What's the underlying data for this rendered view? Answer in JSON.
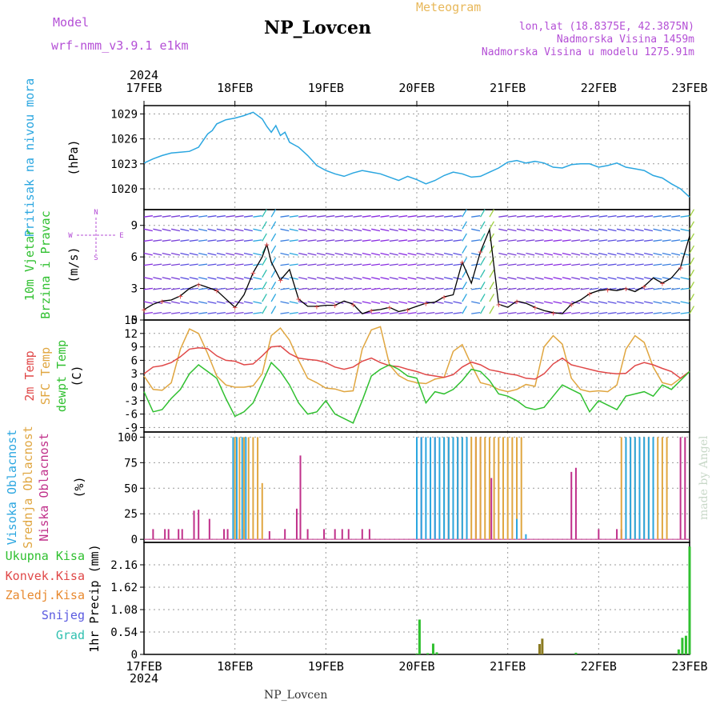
{
  "header": {
    "model_label": "Model",
    "model_name": "wrf-nmm_v3.9.1 e1km",
    "station": "NP_Lovcen",
    "meteogram_label": "Meteogram",
    "coords": "lon,lat (18.8375E, 42.3875N)",
    "elevation": "Nadmorska Visina 1459m",
    "model_elevation": "Nadmorska Visina u modelu 1275.91m",
    "year": "2024",
    "footer_station": "NP_Lovcen",
    "credit": "made by Angel"
  },
  "colors": {
    "pressure": "#2aa6e0",
    "temp": "#e04848",
    "sfc_temp": "#e0a640",
    "dewpoint": "#30c030",
    "high_cloud": "#2aa6e0",
    "mid_cloud": "#e0a640",
    "low_cloud": "#c0308a",
    "precip_total": "#30c030",
    "precip_conv": "#e04848",
    "precip_strat": "#e88a30",
    "snow": "#5a5ae0",
    "hail": "#30c0b0",
    "wind_label": "#b44fd6"
  },
  "chart_data": [
    {
      "id": "pressure",
      "type": "line",
      "ylabel_left": "Pritisak na nivou mora",
      "ylabel_unit": "(hPa)",
      "ylim": [
        1017.5,
        1030
      ],
      "yticks": [
        1020,
        1023,
        1026,
        1029
      ],
      "x_ticks": [
        "17FEB",
        "18FEB",
        "19FEB",
        "20FEB",
        "21FEB",
        "22FEB",
        "23FEB"
      ],
      "x_days": [
        0,
        6
      ],
      "grid": true,
      "series": [
        {
          "key": "pressure",
          "x": [
            0,
            0.1,
            0.2,
            0.3,
            0.4,
            0.5,
            0.6,
            0.7,
            0.75,
            0.8,
            0.9,
            1.0,
            1.1,
            1.2,
            1.3,
            1.35,
            1.4,
            1.45,
            1.5,
            1.55,
            1.6,
            1.65,
            1.7,
            1.8,
            1.9,
            2.0,
            2.1,
            2.2,
            2.3,
            2.4,
            2.5,
            2.6,
            2.7,
            2.8,
            2.9,
            3.0,
            3.1,
            3.2,
            3.3,
            3.4,
            3.5,
            3.6,
            3.7,
            3.8,
            3.9,
            4.0,
            4.1,
            4.2,
            4.3,
            4.4,
            4.5,
            4.6,
            4.7,
            4.8,
            4.9,
            5.0,
            5.1,
            5.2,
            5.3,
            5.4,
            5.5,
            5.6,
            5.7,
            5.8,
            5.9,
            6.0
          ],
          "y": [
            1023.1,
            1023.6,
            1024.0,
            1024.3,
            1024.4,
            1024.5,
            1025.0,
            1026.6,
            1027.0,
            1027.8,
            1028.3,
            1028.5,
            1028.8,
            1029.2,
            1028.4,
            1027.5,
            1026.8,
            1027.6,
            1026.4,
            1026.8,
            1025.6,
            1025.3,
            1025.0,
            1024.0,
            1022.8,
            1022.2,
            1021.8,
            1021.5,
            1021.9,
            1022.2,
            1022.0,
            1021.8,
            1021.4,
            1021.0,
            1021.5,
            1021.1,
            1020.6,
            1021.0,
            1021.6,
            1022.0,
            1021.8,
            1021.4,
            1021.5,
            1022.0,
            1022.5,
            1023.2,
            1023.4,
            1023.1,
            1023.3,
            1023.1,
            1022.6,
            1022.5,
            1022.9,
            1023.0,
            1023.0,
            1022.6,
            1022.8,
            1023.1,
            1022.6,
            1022.4,
            1022.2,
            1021.6,
            1021.3,
            1020.6,
            1020.0,
            1019.0
          ]
        }
      ]
    },
    {
      "id": "wind",
      "type": "line",
      "ylabel_left": "10m Vjetar",
      "ylabel_left2": "Brzina i Pravac",
      "ylabel_unit": "(m/s)",
      "compass": [
        "N",
        "E",
        "S",
        "W"
      ],
      "ylim": [
        0,
        10.5
      ],
      "yticks": [
        0,
        3,
        6,
        9
      ],
      "grid": true,
      "series": [
        {
          "key": "speed",
          "x": [
            0,
            0.1,
            0.2,
            0.3,
            0.4,
            0.5,
            0.6,
            0.7,
            0.8,
            0.9,
            1.0,
            1.1,
            1.2,
            1.3,
            1.35,
            1.4,
            1.5,
            1.6,
            1.7,
            1.8,
            1.9,
            2.0,
            2.1,
            2.2,
            2.3,
            2.4,
            2.5,
            2.6,
            2.7,
            2.8,
            2.9,
            3.0,
            3.1,
            3.2,
            3.3,
            3.4,
            3.5,
            3.6,
            3.7,
            3.8,
            3.9,
            4.0,
            4.1,
            4.2,
            4.3,
            4.4,
            4.5,
            4.6,
            4.7,
            4.8,
            4.9,
            5.0,
            5.1,
            5.2,
            5.3,
            5.4,
            5.5,
            5.6,
            5.7,
            5.8,
            5.9,
            6.0
          ],
          "y": [
            1.0,
            1.5,
            1.8,
            1.9,
            2.3,
            3.0,
            3.4,
            3.1,
            2.8,
            2.0,
            1.2,
            2.4,
            4.5,
            6.0,
            7.2,
            5.5,
            3.8,
            4.8,
            2.0,
            1.3,
            1.3,
            1.4,
            1.4,
            1.8,
            1.5,
            0.6,
            0.9,
            1.0,
            1.2,
            0.8,
            1.0,
            1.3,
            1.6,
            1.7,
            2.2,
            2.4,
            5.5,
            3.5,
            6.5,
            8.6,
            1.5,
            1.2,
            1.8,
            1.6,
            1.2,
            0.9,
            0.7,
            0.6,
            1.5,
            1.9,
            2.5,
            2.8,
            2.9,
            2.8,
            3.0,
            2.7,
            3.2,
            4.0,
            3.5,
            4.0,
            5.0,
            8.0
          ]
        }
      ]
    },
    {
      "id": "temperature",
      "type": "line",
      "ylabel_left": "2m Temp",
      "ylabel_left2": "SFC Temp",
      "ylabel_left3": "dewpt Temp",
      "ylabel_unit": "(C)",
      "ylim": [
        -10,
        15
      ],
      "yticks": [
        -9,
        -6,
        -3,
        0,
        3,
        6,
        9,
        12,
        15
      ],
      "grid": true,
      "series": [
        {
          "key": "t2m",
          "x": [
            0,
            0.1,
            0.2,
            0.3,
            0.4,
            0.5,
            0.6,
            0.7,
            0.8,
            0.9,
            1.0,
            1.1,
            1.2,
            1.3,
            1.4,
            1.5,
            1.6,
            1.7,
            1.8,
            1.9,
            2.0,
            2.1,
            2.2,
            2.3,
            2.4,
            2.5,
            2.6,
            2.7,
            2.8,
            2.9,
            3.0,
            3.1,
            3.2,
            3.3,
            3.4,
            3.5,
            3.6,
            3.7,
            3.8,
            3.9,
            4.0,
            4.1,
            4.2,
            4.3,
            4.4,
            4.5,
            4.6,
            4.7,
            4.8,
            4.9,
            5.0,
            5.1,
            5.2,
            5.3,
            5.4,
            5.5,
            5.6,
            5.7,
            5.8,
            5.9,
            6.0
          ],
          "y": [
            3.0,
            4.5,
            4.8,
            5.5,
            6.8,
            8.5,
            8.8,
            8.6,
            7.0,
            6.0,
            5.8,
            5.0,
            5.2,
            7.0,
            9.0,
            9.2,
            7.5,
            6.5,
            6.2,
            6.0,
            5.5,
            4.5,
            4.0,
            4.5,
            5.8,
            6.5,
            5.5,
            4.8,
            4.6,
            4.0,
            3.5,
            2.8,
            2.5,
            2.2,
            2.8,
            4.5,
            5.6,
            5.0,
            3.9,
            3.5,
            3.0,
            2.7,
            2.0,
            1.8,
            3.0,
            5.2,
            6.5,
            5.0,
            4.5,
            4.0,
            3.5,
            3.2,
            3.0,
            3.1,
            4.8,
            5.5,
            5.0,
            4.2,
            3.5,
            2.0,
            3.5
          ]
        },
        {
          "key": "tsfc",
          "x": [
            0,
            0.1,
            0.2,
            0.3,
            0.4,
            0.5,
            0.6,
            0.7,
            0.8,
            0.9,
            1.0,
            1.1,
            1.2,
            1.3,
            1.4,
            1.5,
            1.6,
            1.7,
            1.8,
            1.9,
            2.0,
            2.1,
            2.2,
            2.3,
            2.4,
            2.5,
            2.6,
            2.7,
            2.8,
            2.9,
            3.0,
            3.1,
            3.2,
            3.3,
            3.4,
            3.5,
            3.6,
            3.7,
            3.8,
            3.9,
            4.0,
            4.1,
            4.2,
            4.3,
            4.4,
            4.5,
            4.6,
            4.7,
            4.8,
            4.9,
            5.0,
            5.1,
            5.2,
            5.3,
            5.4,
            5.5,
            5.6,
            5.7,
            5.8,
            5.9,
            6.0
          ],
          "y": [
            2.5,
            -0.5,
            -0.7,
            1.0,
            8.5,
            13.0,
            12.0,
            7.5,
            2.5,
            0.5,
            0.0,
            0.0,
            0.3,
            3.0,
            11.5,
            13.2,
            10.5,
            6.0,
            2.0,
            1.0,
            -0.2,
            -0.4,
            -1.0,
            -0.8,
            8.5,
            12.8,
            13.5,
            5.0,
            2.6,
            1.5,
            1.0,
            0.8,
            1.8,
            2.2,
            8.0,
            9.5,
            5.0,
            1.0,
            0.5,
            -0.5,
            -1.0,
            -0.5,
            0.6,
            0.2,
            9.0,
            11.5,
            9.6,
            2.0,
            -0.5,
            -1.0,
            -0.8,
            -1.0,
            0.5,
            8.5,
            11.5,
            10.0,
            4.5,
            1.0,
            0.5,
            2.0,
            3.5
          ]
        },
        {
          "key": "dewpt",
          "x": [
            0,
            0.1,
            0.2,
            0.3,
            0.4,
            0.5,
            0.6,
            0.7,
            0.8,
            0.9,
            1.0,
            1.1,
            1.2,
            1.3,
            1.4,
            1.5,
            1.6,
            1.7,
            1.8,
            1.9,
            2.0,
            2.1,
            2.2,
            2.3,
            2.4,
            2.5,
            2.6,
            2.7,
            2.8,
            2.9,
            3.0,
            3.1,
            3.2,
            3.3,
            3.4,
            3.5,
            3.6,
            3.7,
            3.8,
            3.9,
            4.0,
            4.1,
            4.2,
            4.3,
            4.4,
            4.5,
            4.6,
            4.7,
            4.8,
            4.9,
            5.0,
            5.1,
            5.2,
            5.3,
            5.4,
            5.5,
            5.6,
            5.7,
            5.8,
            5.9,
            6.0
          ],
          "y": [
            -1.0,
            -5.5,
            -5.0,
            -2.5,
            -0.5,
            3.0,
            5.0,
            3.5,
            2.0,
            -2.5,
            -6.5,
            -5.5,
            -3.5,
            1.0,
            5.5,
            3.5,
            0.5,
            -3.5,
            -6.0,
            -5.5,
            -3.0,
            -6.0,
            -7.0,
            -8.0,
            -3.0,
            2.5,
            4.0,
            5.0,
            4.0,
            2.5,
            2.0,
            -3.5,
            -1.0,
            -1.5,
            -0.5,
            1.5,
            4.0,
            3.5,
            1.5,
            -1.5,
            -2.0,
            -3.0,
            -4.5,
            -5.0,
            -4.5,
            -2.0,
            0.5,
            -0.5,
            -1.5,
            -5.5,
            -3.0,
            -4.0,
            -5.0,
            -2.0,
            -1.5,
            -1.0,
            -2.0,
            0.5,
            -0.5,
            1.5,
            3.5
          ]
        }
      ]
    },
    {
      "id": "clouds",
      "type": "bar",
      "ylabel_left": "Visoka Oblacnost",
      "ylabel_left2": "Srednja Oblacnost",
      "ylabel_left3": "Niska Oblacnost",
      "ylabel_unit": "(%)",
      "ylim": [
        -3,
        105
      ],
      "yticks": [
        0,
        25,
        50,
        75,
        100
      ],
      "grid": true,
      "series": [
        {
          "key": "low_cloud",
          "x": [
            0.1,
            0.23,
            0.27,
            0.38,
            0.42,
            0.55,
            0.6,
            0.72,
            0.88,
            0.92,
            1.05,
            1.1,
            1.38,
            1.55,
            1.68,
            1.72,
            1.8,
            1.98,
            2.1,
            2.18,
            2.25,
            2.4,
            2.48,
            3.0,
            3.05,
            3.2,
            3.35,
            3.45,
            3.55,
            3.65,
            3.7,
            3.82,
            4.7,
            4.75,
            5.0,
            5.2,
            5.25,
            5.9,
            5.95
          ],
          "y": [
            10,
            10,
            10,
            10,
            10,
            28,
            29,
            20,
            10,
            10,
            10,
            10,
            8,
            10,
            30,
            82,
            10,
            10,
            10,
            10,
            10,
            10,
            10,
            100,
            100,
            100,
            100,
            100,
            100,
            100,
            100,
            60,
            66,
            70,
            10,
            10,
            10,
            100,
            100
          ]
        },
        {
          "key": "mid_cloud",
          "x": [
            1.0,
            1.05,
            1.1,
            1.15,
            1.2,
            1.25,
            1.3,
            3.3,
            3.35,
            3.4,
            3.45,
            3.5,
            3.55,
            3.6,
            3.65,
            3.7,
            3.75,
            3.8,
            3.85,
            3.9,
            3.95,
            4.0,
            4.05,
            4.1,
            4.15,
            5.25,
            5.3,
            5.35,
            5.4,
            5.45,
            5.5,
            5.55,
            5.6,
            5.65,
            5.7,
            5.75
          ],
          "y": [
            100,
            100,
            100,
            100,
            100,
            100,
            55,
            100,
            100,
            100,
            100,
            100,
            100,
            100,
            100,
            100,
            100,
            100,
            100,
            100,
            100,
            100,
            100,
            100,
            100,
            100,
            100,
            100,
            100,
            100,
            100,
            100,
            100,
            100,
            100,
            100
          ]
        },
        {
          "key": "high_cloud",
          "x": [
            0.98,
            1.02,
            1.08,
            1.12,
            3.0,
            3.05,
            3.1,
            3.15,
            3.2,
            3.25,
            3.3,
            3.35,
            3.4,
            3.45,
            3.5,
            3.55,
            4.1,
            4.2,
            5.3,
            5.35,
            5.4,
            5.45,
            5.5,
            5.55,
            5.6
          ],
          "y": [
            100,
            100,
            100,
            100,
            100,
            100,
            100,
            100,
            100,
            100,
            100,
            100,
            100,
            100,
            100,
            100,
            20,
            5,
            100,
            100,
            100,
            100,
            100,
            100,
            100
          ]
        }
      ]
    },
    {
      "id": "precip",
      "type": "bar",
      "ylabel_left": "Ukupna Kisa",
      "ylabel_left2": "Konvek.Kisa",
      "ylabel_left3": "Zaledj.Kisa",
      "ylabel_left4": "Snijeg",
      "ylabel_left5": "Grad",
      "ylabel_unit": "1hr Precip (mm)",
      "ylim": [
        0,
        2.7
      ],
      "yticks": [
        0,
        0.54,
        1.08,
        1.62,
        2.16
      ],
      "grid": true,
      "series": [
        {
          "key": "total",
          "x": [
            3.0,
            3.03,
            3.12,
            3.18,
            3.22,
            4.75,
            5.88,
            5.92,
            5.96,
            6.0
          ],
          "y": [
            0.02,
            0.84,
            0.03,
            0.26,
            0.05,
            0.04,
            0.12,
            0.4,
            0.45,
            2.6
          ]
        },
        {
          "key": "mix",
          "x": [
            4.35,
            4.38
          ],
          "y": [
            0.25,
            0.38
          ]
        }
      ]
    }
  ]
}
